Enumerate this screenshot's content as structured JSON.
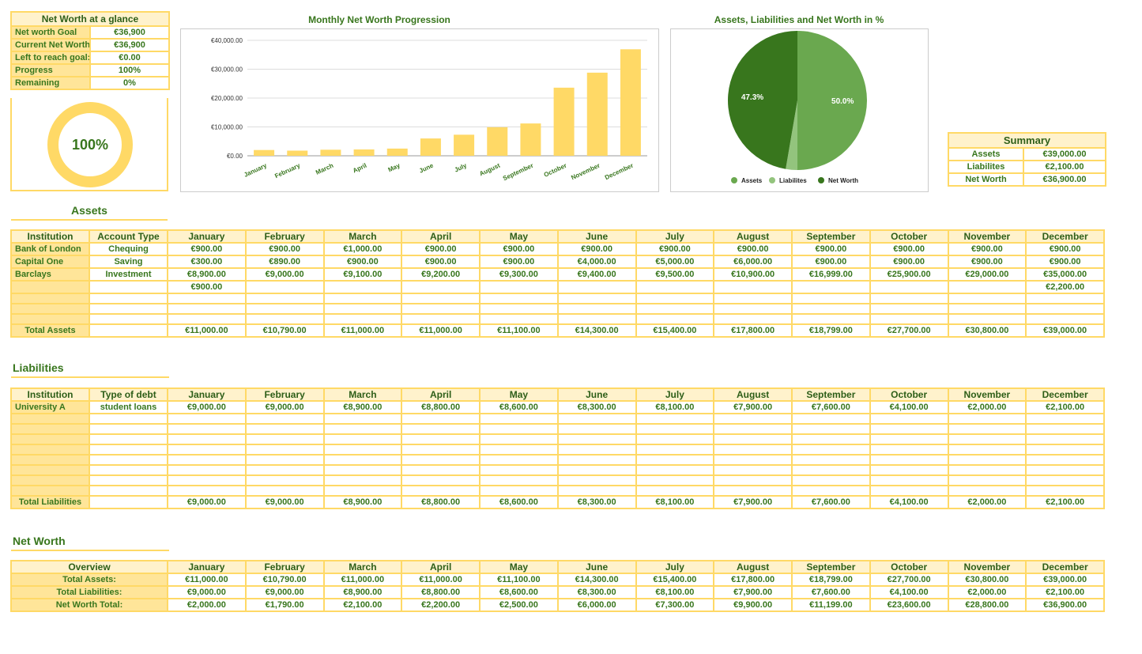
{
  "glance": {
    "title": "Net Worth  at a glance",
    "rows": [
      [
        "Net worth Goal",
        "€36,900"
      ],
      [
        "Current Net Worth:",
        "€36,900"
      ],
      [
        "Left to reach goal:",
        "€0.00"
      ],
      [
        "Progress",
        "100%"
      ],
      [
        "Remaining",
        "0%"
      ]
    ],
    "progress_label": "100%",
    "progress": 1.0
  },
  "colors": {
    "border": "#ffd966",
    "header": "#fff2cc",
    "side": "#ffe599",
    "text": "#38761d",
    "bar": "#ffd966",
    "assets": "#6aa84f",
    "liabilities": "#93c47d",
    "networth": "#38761d"
  },
  "months": [
    "January",
    "February",
    "March",
    "April",
    "May",
    "June",
    "July",
    "August",
    "September",
    "October",
    "November",
    "December"
  ],
  "chart_data": [
    {
      "type": "bar",
      "title": "Monthly Net Worth Progression",
      "categories": [
        "January",
        "February",
        "March",
        "April",
        "May",
        "June",
        "July",
        "August",
        "September",
        "October",
        "November",
        "December"
      ],
      "values": [
        2000,
        1790,
        2100,
        2200,
        2500,
        6000,
        7300,
        9900,
        11199,
        23600,
        28800,
        36900
      ],
      "ylim": [
        0,
        40000
      ],
      "yticks": [
        "€0.00",
        "€10,000.00",
        "€20,000.00",
        "€30,000.00",
        "€40,000.00"
      ],
      "grid": true
    },
    {
      "type": "pie",
      "title": "Assets, Liabilities and Net Worth in %",
      "categories": [
        "Assets",
        "Liabilites",
        "Net Worth"
      ],
      "values": [
        50.0,
        2.7,
        47.3
      ],
      "labels": [
        "50.0%",
        "",
        "47.3%"
      ],
      "legend": "bottom"
    }
  ],
  "summary": {
    "title": "Summary",
    "rows": [
      [
        "Assets",
        "€39,000.00"
      ],
      [
        "Liabilites",
        "€2,100.00"
      ],
      [
        "Net Worth",
        "€36,900.00"
      ]
    ]
  },
  "assets": {
    "title": "Assets",
    "headers": [
      "Institution",
      "Account Type"
    ],
    "rows": [
      [
        "Bank of London",
        "Chequing",
        "€900.00",
        "€900.00",
        "€1,000.00",
        "€900.00",
        "€900.00",
        "€900.00",
        "€900.00",
        "€900.00",
        "€900.00",
        "€900.00",
        "€900.00",
        "€900.00"
      ],
      [
        "Capital One",
        "Saving",
        "€300.00",
        "€890.00",
        "€900.00",
        "€900.00",
        "€900.00",
        "€4,000.00",
        "€5,000.00",
        "€6,000.00",
        "€900.00",
        "€900.00",
        "€900.00",
        "€900.00"
      ],
      [
        "Barclays",
        "Investment",
        "€8,900.00",
        "€9,000.00",
        "€9,100.00",
        "€9,200.00",
        "€9,300.00",
        "€9,400.00",
        "€9,500.00",
        "€10,900.00",
        "€16,999.00",
        "€25,900.00",
        "€29,000.00",
        "€35,000.00"
      ],
      [
        "",
        "",
        "€900.00",
        "",
        "",
        "",
        "",
        "",
        "",
        "",
        "",
        "",
        "",
        "€2,200.00"
      ],
      [
        "",
        "",
        "",
        "",
        "",
        "",
        "",
        "",
        "",
        "",
        "",
        "",
        "",
        ""
      ],
      [
        "",
        "",
        "",
        "",
        "",
        "",
        "",
        "",
        "",
        "",
        "",
        "",
        "",
        ""
      ],
      [
        "",
        "",
        "",
        "",
        "",
        "",
        "",
        "",
        "",
        "",
        "",
        "",
        "",
        ""
      ]
    ],
    "total": [
      "Total Assets",
      "",
      "€11,000.00",
      "€10,790.00",
      "€11,000.00",
      "€11,000.00",
      "€11,100.00",
      "€14,300.00",
      "€15,400.00",
      "€17,800.00",
      "€18,799.00",
      "€27,700.00",
      "€30,800.00",
      "€39,000.00"
    ]
  },
  "liabilities": {
    "title": "Liabilities",
    "headers": [
      "Institution",
      "Type of debt"
    ],
    "rows": [
      [
        "University A",
        "student loans",
        "€9,000.00",
        "€9,000.00",
        "€8,900.00",
        "€8,800.00",
        "€8,600.00",
        "€8,300.00",
        "€8,100.00",
        "€7,900.00",
        "€7,600.00",
        "€4,100.00",
        "€2,000.00",
        "€2,100.00"
      ],
      [
        "",
        "",
        "",
        "",
        "",
        "",
        "",
        "",
        "",
        "",
        "",
        "",
        "",
        ""
      ],
      [
        "",
        "",
        "",
        "",
        "",
        "",
        "",
        "",
        "",
        "",
        "",
        "",
        "",
        ""
      ],
      [
        "",
        "",
        "",
        "",
        "",
        "",
        "",
        "",
        "",
        "",
        "",
        "",
        "",
        ""
      ],
      [
        "",
        "",
        "",
        "",
        "",
        "",
        "",
        "",
        "",
        "",
        "",
        "",
        "",
        ""
      ],
      [
        "",
        "",
        "",
        "",
        "",
        "",
        "",
        "",
        "",
        "",
        "",
        "",
        "",
        ""
      ],
      [
        "",
        "",
        "",
        "",
        "",
        "",
        "",
        "",
        "",
        "",
        "",
        "",
        "",
        ""
      ],
      [
        "",
        "",
        "",
        "",
        "",
        "",
        "",
        "",
        "",
        "",
        "",
        "",
        "",
        ""
      ],
      [
        "",
        "",
        "",
        "",
        "",
        "",
        "",
        "",
        "",
        "",
        "",
        "",
        "",
        ""
      ]
    ],
    "total": [
      "Total Liabilities",
      "",
      "€9,000.00",
      "€9,000.00",
      "€8,900.00",
      "€8,800.00",
      "€8,600.00",
      "€8,300.00",
      "€8,100.00",
      "€7,900.00",
      "€7,600.00",
      "€4,100.00",
      "€2,000.00",
      "€2,100.00"
    ]
  },
  "networth": {
    "title": "Net Worth",
    "header": "Overview",
    "rows": [
      [
        "Total Assets:",
        "€11,000.00",
        "€10,790.00",
        "€11,000.00",
        "€11,000.00",
        "€11,100.00",
        "€14,300.00",
        "€15,400.00",
        "€17,800.00",
        "€18,799.00",
        "€27,700.00",
        "€30,800.00",
        "€39,000.00"
      ],
      [
        "Total  Liabilities:",
        "€9,000.00",
        "€9,000.00",
        "€8,900.00",
        "€8,800.00",
        "€8,600.00",
        "€8,300.00",
        "€8,100.00",
        "€7,900.00",
        "€7,600.00",
        "€4,100.00",
        "€2,000.00",
        "€2,100.00"
      ],
      [
        "Net Worth Total:",
        "€2,000.00",
        "€1,790.00",
        "€2,100.00",
        "€2,200.00",
        "€2,500.00",
        "€6,000.00",
        "€7,300.00",
        "€9,900.00",
        "€11,199.00",
        "€23,600.00",
        "€28,800.00",
        "€36,900.00"
      ]
    ]
  }
}
